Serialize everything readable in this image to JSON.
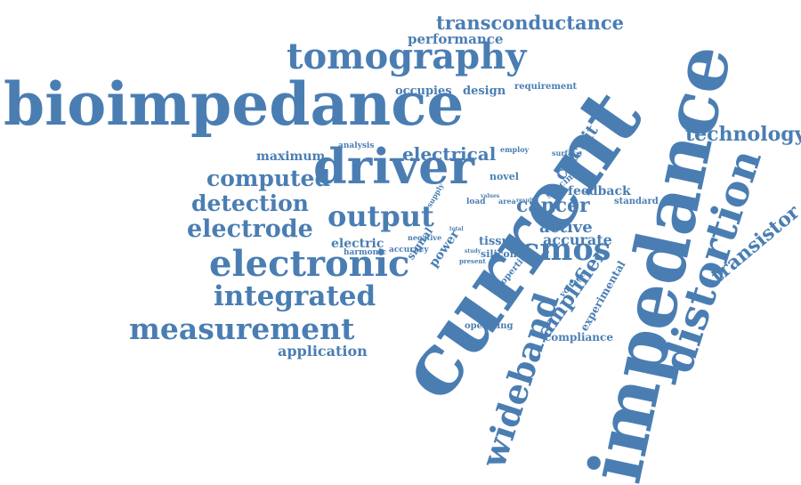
{
  "color": "#4a7eb3",
  "words": [
    {
      "text": "bioimpedance"
    },
    {
      "text": "tomography"
    },
    {
      "text": "transconductance"
    },
    {
      "text": "performance"
    },
    {
      "text": "occupies"
    },
    {
      "text": "design"
    },
    {
      "text": "requirement"
    },
    {
      "text": "driver"
    },
    {
      "text": "output"
    },
    {
      "text": "electronic"
    },
    {
      "text": "integrated"
    },
    {
      "text": "measurement"
    },
    {
      "text": "application"
    },
    {
      "text": "computed"
    },
    {
      "text": "detection"
    },
    {
      "text": "electrode"
    },
    {
      "text": "maximum"
    },
    {
      "text": "electrical"
    },
    {
      "text": "analysis"
    },
    {
      "text": "electric"
    },
    {
      "text": "harmonic"
    },
    {
      "text": "accuracy"
    },
    {
      "text": "signal"
    },
    {
      "text": "supply"
    },
    {
      "text": "power"
    },
    {
      "text": "negative"
    },
    {
      "text": "load"
    },
    {
      "text": "novel"
    },
    {
      "text": "cancer"
    },
    {
      "text": "active"
    },
    {
      "text": "accurate"
    },
    {
      "text": "tissue"
    },
    {
      "text": "silicon"
    },
    {
      "text": "cmos"
    },
    {
      "text": "feedback"
    },
    {
      "text": "standard"
    },
    {
      "text": "specimen"
    },
    {
      "text": "surface"
    },
    {
      "text": "employ"
    },
    {
      "text": "circuit"
    },
    {
      "text": "technology"
    },
    {
      "text": "transistor"
    },
    {
      "text": "current"
    },
    {
      "text": "impedance"
    },
    {
      "text": "distortion"
    },
    {
      "text": "wideband"
    },
    {
      "text": "amplifier"
    },
    {
      "text": "experimental"
    },
    {
      "text": "voltage"
    },
    {
      "text": "properties"
    },
    {
      "text": "operating"
    },
    {
      "text": "compliance"
    },
    {
      "text": "present"
    },
    {
      "text": "study"
    },
    {
      "text": "result"
    },
    {
      "text": "area"
    },
    {
      "text": "human"
    },
    {
      "text": "values"
    },
    {
      "text": "total"
    }
  ]
}
